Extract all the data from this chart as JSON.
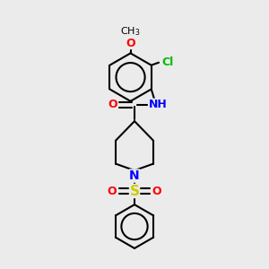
{
  "bg_color": "#ebebeb",
  "bond_color": "#000000",
  "colors": {
    "O": "#ff0000",
    "N": "#0000ff",
    "S": "#cccc00",
    "Cl": "#00bb00",
    "C": "#000000"
  },
  "figsize": [
    3.0,
    3.0
  ],
  "dpi": 100,
  "lw": 1.5,
  "lw_ring": 1.5
}
